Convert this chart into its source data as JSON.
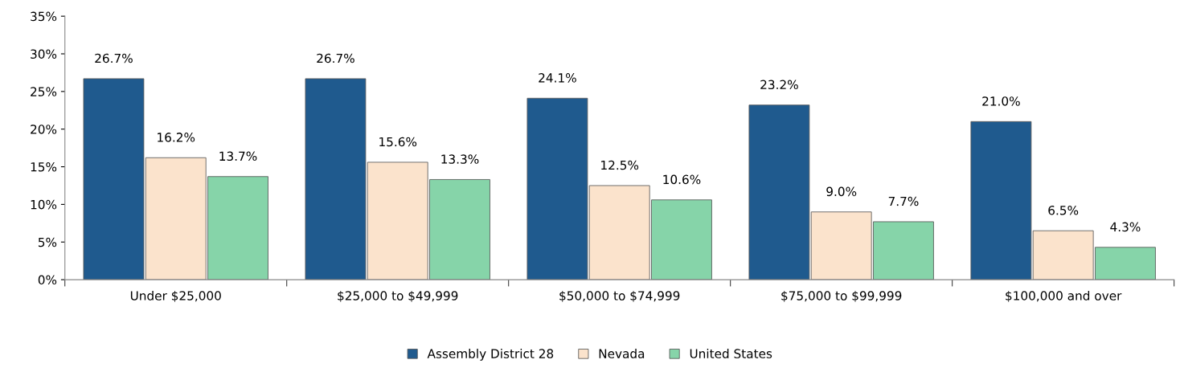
{
  "chart_data": {
    "type": "bar",
    "categories": [
      "Under $25,000",
      "$25,000 to $49,999",
      "$50,000 to $74,999",
      "$75,000 to $99,999",
      "$100,000 and over"
    ],
    "series": [
      {
        "name": "Assembly District 28",
        "color": "#1f5a8e",
        "values": [
          26.7,
          26.7,
          24.1,
          23.2,
          21.0
        ],
        "value_labels": [
          "26.7%",
          "26.7%",
          "24.1%",
          "23.2%",
          "21.0%"
        ]
      },
      {
        "name": "Nevada",
        "color": "#fbe3cc",
        "values": [
          16.2,
          15.6,
          12.5,
          9.0,
          6.5
        ],
        "value_labels": [
          "16.2%",
          "15.6%",
          "12.5%",
          "9.0%",
          "6.5%"
        ]
      },
      {
        "name": "United States",
        "color": "#86d4a9",
        "values": [
          13.7,
          13.3,
          10.6,
          7.7,
          4.3
        ],
        "value_labels": [
          "13.7%",
          "13.3%",
          "10.6%",
          "7.7%",
          "4.3%"
        ]
      }
    ],
    "ylim": [
      0,
      35
    ],
    "yticks": [
      {
        "value": 0,
        "label": "0%"
      },
      {
        "value": 5,
        "label": "5%"
      },
      {
        "value": 10,
        "label": "10%"
      },
      {
        "value": 15,
        "label": "15%"
      },
      {
        "value": 20,
        "label": "20%"
      },
      {
        "value": 25,
        "label": "25%"
      },
      {
        "value": 30,
        "label": "30%"
      },
      {
        "value": 35,
        "label": "35%"
      }
    ],
    "grid": false,
    "legend": "bottom"
  }
}
